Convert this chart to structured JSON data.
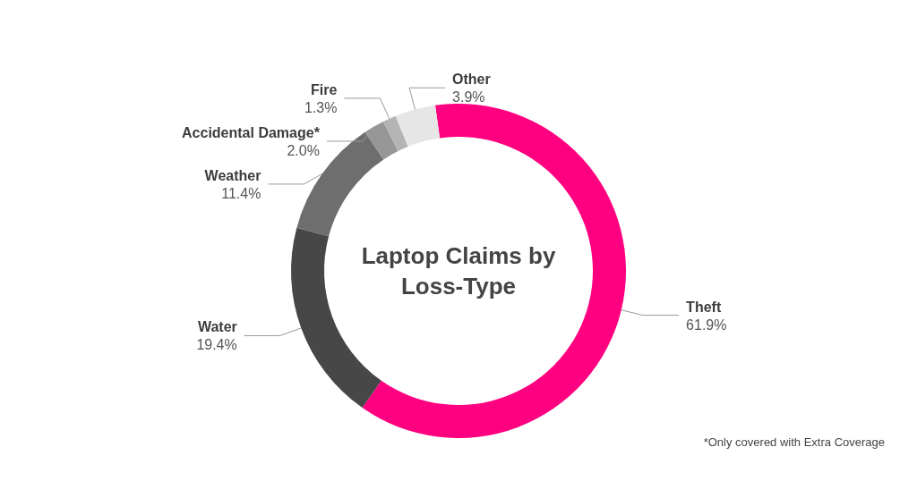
{
  "chart_data": {
    "type": "donut",
    "title": "Laptop Claims by Loss-Type",
    "categories": [
      "Theft",
      "Water",
      "Weather",
      "Accidental Damage*",
      "Fire",
      "Other"
    ],
    "values": [
      61.9,
      19.4,
      11.4,
      2.0,
      1.3,
      3.9
    ],
    "colors": [
      "#ff0080",
      "#474747",
      "#6e6e6e",
      "#969696",
      "#b4b4b4",
      "#e6e6e6"
    ],
    "value_labels": [
      "61.9%",
      "19.4%",
      "11.4%",
      "2.0%",
      "1.3%",
      "3.9%"
    ],
    "annotations": [
      "*Only covered with Extra Coverage"
    ]
  }
}
